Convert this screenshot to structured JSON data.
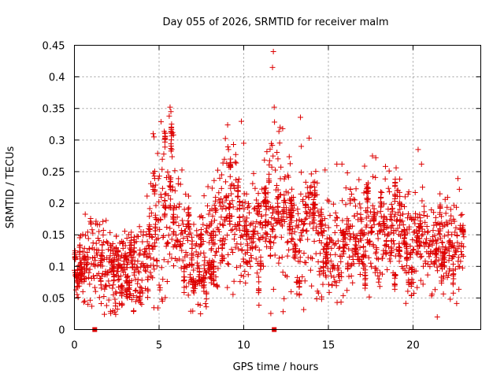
{
  "chart_data": {
    "type": "scatter",
    "title": "Day 055 of 2026, SRMTID for receiver malm",
    "xlabel": "GPS time / hours",
    "ylabel": "SRMTID / TECUs",
    "xlim": [
      0,
      24
    ],
    "ylim": [
      0,
      0.45
    ],
    "x_ticks": [
      0,
      5,
      10,
      15,
      20
    ],
    "x_tick_labels": [
      "0",
      "5",
      "10",
      "15",
      "20"
    ],
    "y_ticks": [
      0,
      0.05,
      0.1,
      0.15,
      0.2,
      0.25,
      0.3,
      0.35,
      0.4,
      0.45
    ],
    "y_tick_labels": [
      "0",
      "0.05",
      "0.1",
      "0.15",
      "0.2",
      "0.25",
      "0.3",
      "0.35",
      "0.4",
      "0.45"
    ],
    "grid": true,
    "marker": "+",
    "color": "#dd0000",
    "data_gaps_marked_at_zero": [
      1.2,
      11.8
    ],
    "series": [
      {
        "name": "SRMTID",
        "envelope_hours": [
          0,
          0.5,
          1,
          1.5,
          2,
          2.5,
          3,
          3.5,
          4,
          4.5,
          5,
          5.5,
          6,
          6.5,
          7,
          7.5,
          8,
          8.5,
          9,
          9.5,
          10,
          10.5,
          11,
          11.5,
          12,
          12.5,
          13,
          13.5,
          14,
          14.5,
          15,
          15.5,
          16,
          16.5,
          17,
          17.5,
          18,
          18.5,
          19,
          19.5,
          20,
          20.5,
          21,
          21.5,
          22,
          22.5,
          23
        ],
        "envelope_mean": [
          0.07,
          0.1,
          0.12,
          0.11,
          0.1,
          0.09,
          0.1,
          0.09,
          0.1,
          0.13,
          0.18,
          0.2,
          0.17,
          0.13,
          0.1,
          0.12,
          0.14,
          0.16,
          0.18,
          0.17,
          0.16,
          0.15,
          0.16,
          0.19,
          0.2,
          0.17,
          0.14,
          0.15,
          0.17,
          0.15,
          0.12,
          0.12,
          0.14,
          0.15,
          0.15,
          0.14,
          0.15,
          0.16,
          0.16,
          0.15,
          0.14,
          0.15,
          0.13,
          0.13,
          0.14,
          0.13,
          0.14
        ],
        "envelope_spread": [
          0.03,
          0.04,
          0.05,
          0.05,
          0.05,
          0.04,
          0.04,
          0.04,
          0.05,
          0.06,
          0.08,
          0.09,
          0.07,
          0.06,
          0.06,
          0.06,
          0.06,
          0.06,
          0.07,
          0.07,
          0.06,
          0.06,
          0.06,
          0.07,
          0.08,
          0.07,
          0.06,
          0.06,
          0.07,
          0.06,
          0.05,
          0.05,
          0.05,
          0.05,
          0.05,
          0.05,
          0.05,
          0.05,
          0.05,
          0.05,
          0.05,
          0.05,
          0.05,
          0.05,
          0.05,
          0.05,
          0.04
        ],
        "notable_points": [
          {
            "x": 11.75,
            "y": 0.44
          },
          {
            "x": 11.7,
            "y": 0.415
          },
          {
            "x": 11.8,
            "y": 0.352
          },
          {
            "x": 5.65,
            "y": 0.352
          },
          {
            "x": 5.7,
            "y": 0.345
          },
          {
            "x": 5.6,
            "y": 0.338
          },
          {
            "x": 13.35,
            "y": 0.336
          },
          {
            "x": 9.05,
            "y": 0.324
          },
          {
            "x": 12.15,
            "y": 0.32
          },
          {
            "x": 12.3,
            "y": 0.318
          },
          {
            "x": 4.65,
            "y": 0.31
          },
          {
            "x": 5.8,
            "y": 0.312
          },
          {
            "x": 5.85,
            "y": 0.308
          },
          {
            "x": 4.7,
            "y": 0.305
          },
          {
            "x": 10.0,
            "y": 0.295
          },
          {
            "x": 13.4,
            "y": 0.29
          },
          {
            "x": 9.1,
            "y": 0.285
          },
          {
            "x": 20.3,
            "y": 0.285
          },
          {
            "x": 9.5,
            "y": 0.265
          },
          {
            "x": 17.8,
            "y": 0.272
          },
          {
            "x": 15.5,
            "y": 0.262
          },
          {
            "x": 15.8,
            "y": 0.262
          },
          {
            "x": 19.0,
            "y": 0.256
          },
          {
            "x": 20.5,
            "y": 0.262
          },
          {
            "x": 7.45,
            "y": 0.025
          },
          {
            "x": 7.3,
            "y": 0.04
          },
          {
            "x": 5.2,
            "y": 0.045
          },
          {
            "x": 1.9,
            "y": 0.038
          },
          {
            "x": 3.5,
            "y": 0.03
          },
          {
            "x": 22.2,
            "y": 0.048
          },
          {
            "x": 14.6,
            "y": 0.048
          },
          {
            "x": 0.8,
            "y": 0.04
          },
          {
            "x": 0.5,
            "y": 0.06
          },
          {
            "x": 2.3,
            "y": 0.055
          },
          {
            "x": 12.8,
            "y": 0.06
          },
          {
            "x": 16.1,
            "y": 0.062
          }
        ]
      }
    ]
  }
}
